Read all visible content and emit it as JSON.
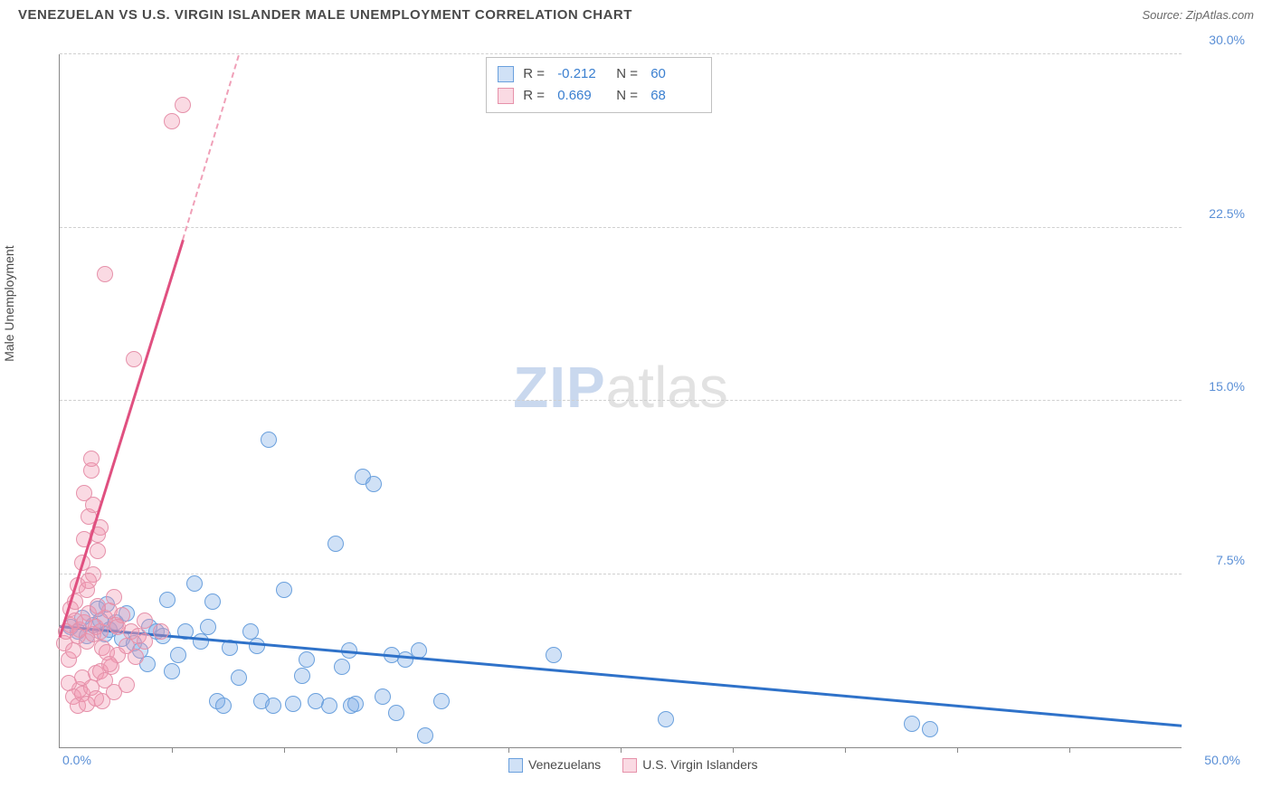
{
  "header": {
    "title": "VENEZUELAN VS U.S. VIRGIN ISLANDER MALE UNEMPLOYMENT CORRELATION CHART",
    "source": "Source: ZipAtlas.com"
  },
  "axes": {
    "ylabel": "Male Unemployment",
    "xlim": [
      0,
      50
    ],
    "ylim": [
      0,
      30
    ],
    "origin_label": "0.0%",
    "xmax_label": "50.0%",
    "yticks": [
      7.5,
      15.0,
      22.5,
      30.0
    ],
    "ytick_labels": [
      "7.5%",
      "15.0%",
      "22.5%",
      "30.0%"
    ],
    "xticks": [
      5,
      10,
      15,
      20,
      25,
      30,
      35,
      40,
      45
    ],
    "grid_color": "#d0d0d0",
    "axis_color": "#888888"
  },
  "series": [
    {
      "name": "Venezuelans",
      "fill": "rgba(120,170,230,0.35)",
      "stroke": "#6aa0dd",
      "marker_r": 9,
      "correlation": "-0.212",
      "n": "60",
      "trend": {
        "x1": 0,
        "y1": 5.3,
        "x2": 50,
        "y2": 1.0,
        "color": "#2f72c9",
        "width": 3
      },
      "points": [
        [
          0.5,
          5.2
        ],
        [
          0.8,
          5.0
        ],
        [
          1.0,
          5.6
        ],
        [
          1.2,
          4.8
        ],
        [
          1.5,
          5.3
        ],
        [
          1.8,
          5.5
        ],
        [
          2.0,
          4.9
        ],
        [
          2.2,
          5.1
        ],
        [
          2.5,
          5.4
        ],
        [
          2.8,
          4.7
        ],
        [
          3.0,
          5.8
        ],
        [
          3.3,
          4.5
        ],
        [
          3.6,
          4.2
        ],
        [
          4.0,
          5.2
        ],
        [
          4.3,
          5.0
        ],
        [
          4.6,
          4.8
        ],
        [
          5.0,
          3.3
        ],
        [
          5.3,
          4.0
        ],
        [
          5.6,
          5.0
        ],
        [
          6.0,
          7.1
        ],
        [
          6.3,
          4.6
        ],
        [
          6.6,
          5.2
        ],
        [
          7.0,
          2.0
        ],
        [
          7.3,
          1.8
        ],
        [
          7.6,
          4.3
        ],
        [
          8.0,
          3.0
        ],
        [
          8.5,
          5.0
        ],
        [
          9.0,
          2.0
        ],
        [
          9.3,
          13.3
        ],
        [
          9.5,
          1.8
        ],
        [
          10.0,
          6.8
        ],
        [
          10.4,
          1.9
        ],
        [
          11.0,
          3.8
        ],
        [
          11.4,
          2.0
        ],
        [
          12.0,
          1.8
        ],
        [
          12.3,
          8.8
        ],
        [
          12.6,
          3.5
        ],
        [
          13.0,
          1.8
        ],
        [
          13.2,
          1.9
        ],
        [
          13.5,
          11.7
        ],
        [
          14.0,
          11.4
        ],
        [
          14.4,
          2.2
        ],
        [
          15.0,
          1.5
        ],
        [
          15.4,
          3.8
        ],
        [
          16.0,
          4.2
        ],
        [
          16.3,
          0.5
        ],
        [
          17.0,
          2.0
        ],
        [
          22.0,
          4.0
        ],
        [
          27.0,
          1.2
        ],
        [
          38.0,
          1.0
        ],
        [
          38.8,
          0.8
        ],
        [
          1.7,
          6.0
        ],
        [
          2.1,
          6.2
        ],
        [
          3.9,
          3.6
        ],
        [
          4.8,
          6.4
        ],
        [
          6.8,
          6.3
        ],
        [
          8.8,
          4.4
        ],
        [
          10.8,
          3.1
        ],
        [
          12.9,
          4.2
        ],
        [
          14.8,
          4.0
        ]
      ]
    },
    {
      "name": "U.S. Virgin Islanders",
      "fill": "rgba(240,150,175,0.35)",
      "stroke": "#e691aa",
      "marker_r": 9,
      "correlation": "0.669",
      "n": "68",
      "trend": {
        "x1": 0,
        "y1": 4.8,
        "x2": 5.5,
        "y2": 22.0,
        "color": "#e05080",
        "width": 3
      },
      "trend_dash": {
        "x1": 5.5,
        "y1": 22.0,
        "x2": 8.0,
        "y2": 30.0,
        "color": "#f0a0b8"
      },
      "points": [
        [
          0.2,
          4.5
        ],
        [
          0.3,
          5.0
        ],
        [
          0.4,
          3.8
        ],
        [
          0.5,
          5.3
        ],
        [
          0.5,
          6.0
        ],
        [
          0.6,
          4.2
        ],
        [
          0.7,
          5.5
        ],
        [
          0.7,
          6.3
        ],
        [
          0.8,
          4.8
        ],
        [
          0.8,
          7.0
        ],
        [
          0.9,
          5.1
        ],
        [
          0.9,
          2.5
        ],
        [
          1.0,
          3.0
        ],
        [
          1.0,
          8.0
        ],
        [
          1.1,
          5.4
        ],
        [
          1.1,
          9.0
        ],
        [
          1.2,
          4.6
        ],
        [
          1.2,
          6.8
        ],
        [
          1.3,
          10.0
        ],
        [
          1.3,
          5.8
        ],
        [
          1.4,
          12.0
        ],
        [
          1.4,
          12.5
        ],
        [
          1.5,
          4.9
        ],
        [
          1.5,
          7.5
        ],
        [
          1.6,
          5.2
        ],
        [
          1.6,
          3.2
        ],
        [
          1.7,
          6.1
        ],
        [
          1.7,
          8.5
        ],
        [
          1.8,
          5.0
        ],
        [
          1.8,
          9.5
        ],
        [
          1.9,
          4.3
        ],
        [
          1.9,
          2.0
        ],
        [
          2.0,
          5.6
        ],
        [
          2.0,
          20.5
        ],
        [
          2.1,
          4.1
        ],
        [
          2.2,
          5.9
        ],
        [
          2.3,
          3.5
        ],
        [
          2.4,
          6.5
        ],
        [
          2.5,
          5.3
        ],
        [
          2.6,
          4.0
        ],
        [
          2.8,
          5.7
        ],
        [
          3.0,
          4.4
        ],
        [
          3.2,
          5.0
        ],
        [
          3.3,
          16.8
        ],
        [
          3.5,
          4.8
        ],
        [
          3.8,
          5.5
        ],
        [
          4.5,
          5.0
        ],
        [
          5.0,
          27.1
        ],
        [
          5.5,
          27.8
        ],
        [
          0.4,
          2.8
        ],
        [
          0.6,
          2.2
        ],
        [
          0.8,
          1.8
        ],
        [
          1.0,
          2.3
        ],
        [
          1.2,
          1.9
        ],
        [
          1.4,
          2.6
        ],
        [
          1.6,
          2.1
        ],
        [
          1.8,
          3.3
        ],
        [
          2.0,
          2.9
        ],
        [
          2.2,
          3.6
        ],
        [
          2.4,
          2.4
        ],
        [
          2.6,
          5.2
        ],
        [
          3.0,
          2.7
        ],
        [
          3.4,
          3.9
        ],
        [
          3.8,
          4.6
        ],
        [
          1.1,
          11.0
        ],
        [
          1.3,
          7.2
        ],
        [
          1.5,
          10.5
        ],
        [
          1.7,
          9.2
        ]
      ]
    }
  ],
  "legend_top": {
    "rows": [
      {
        "sw_fill": "rgba(120,170,230,0.35)",
        "sw_stroke": "#6aa0dd",
        "r_label": "R =",
        "r_val": "-0.212",
        "n_label": "N =",
        "n_val": "60"
      },
      {
        "sw_fill": "rgba(240,150,175,0.35)",
        "sw_stroke": "#e691aa",
        "r_label": "R =",
        "r_val": "0.669",
        "n_label": "N =",
        "n_val": "68"
      }
    ]
  },
  "legend_bottom": {
    "items": [
      {
        "sw_fill": "rgba(120,170,230,0.35)",
        "sw_stroke": "#6aa0dd",
        "label": "Venezuelans"
      },
      {
        "sw_fill": "rgba(240,150,175,0.35)",
        "sw_stroke": "#e691aa",
        "label": "U.S. Virgin Islanders"
      }
    ]
  },
  "watermark": {
    "part1": "ZIP",
    "part2": "atlas"
  }
}
